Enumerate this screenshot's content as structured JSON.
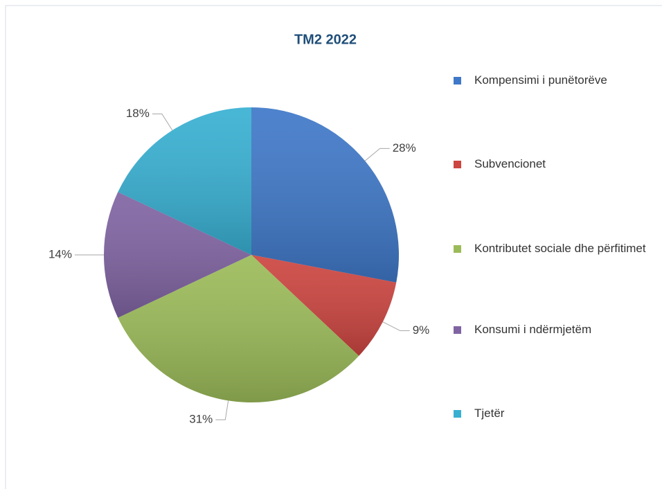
{
  "chart_data": {
    "type": "pie",
    "title": "TM2 2022",
    "categories": [
      "Kompensimi i punëtorëve",
      "Subvencionet",
      "Kontributet sociale dhe përfitimet",
      "Konsumi i ndërmjetëm",
      "Tjetër"
    ],
    "values": [
      28,
      9,
      31,
      14,
      18
    ],
    "value_labels": [
      "28%",
      "9%",
      "31%",
      "14%",
      "18%"
    ],
    "colors": [
      "#3f78c8",
      "#cc4540",
      "#9bbb59",
      "#8064a2",
      "#38b0d2"
    ],
    "legend": "right"
  }
}
